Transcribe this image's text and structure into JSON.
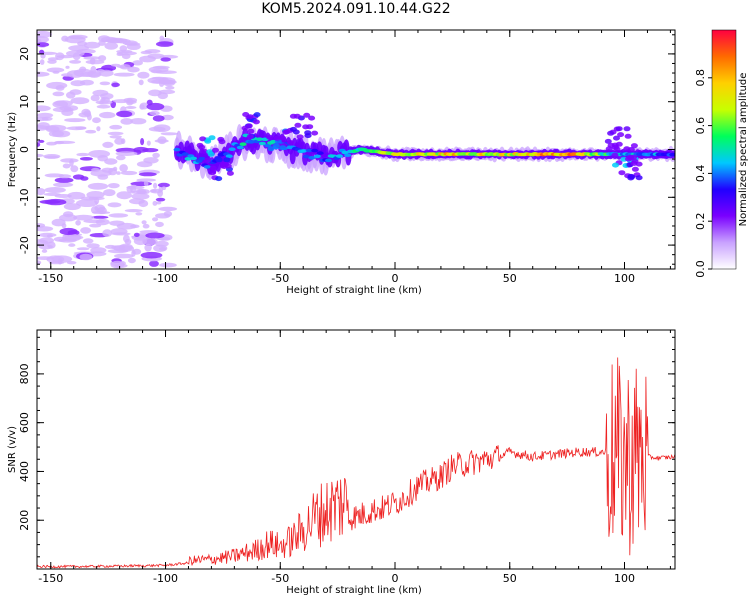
{
  "title": "KOM5.2024.091.10.44.G22",
  "chart_data": [
    {
      "type": "heatmap",
      "xlabel": "Height of straight line (km)",
      "ylabel": "Frequency (Hz)",
      "xlim": [
        -156,
        122
      ],
      "ylim": [
        -25,
        25
      ],
      "xticks": [
        -150,
        -100,
        -50,
        0,
        50,
        100
      ],
      "yticks": [
        -20,
        -10,
        0,
        10,
        20
      ],
      "colorbar": {
        "label": "Normalized spectral amplitude",
        "range": [
          0.0,
          1.0
        ],
        "ticks": [
          "0.0",
          "0.2",
          "0.4",
          "0.6",
          "0.8"
        ],
        "colormap": [
          "#ffffff",
          "#c9a2ff",
          "#7a00ff",
          "#2000ff",
          "#00c8ff",
          "#00ff5a",
          "#c8ff00",
          "#ffd000",
          "#ff6a00",
          "#ff0040"
        ]
      },
      "features": {
        "noise_region_x": [
          -156,
          -98
        ],
        "main_trace": [
          {
            "x": -95,
            "freq": 0.0,
            "amp": 0.45
          },
          {
            "x": -80,
            "freq": -3.0,
            "amp": 0.4
          },
          {
            "x": -65,
            "freq": 2.0,
            "amp": 0.5
          },
          {
            "x": -45,
            "freq": 0.0,
            "amp": 0.45
          },
          {
            "x": -30,
            "freq": -1.5,
            "amp": 0.4
          },
          {
            "x": -15,
            "freq": 0.0,
            "amp": 0.55
          },
          {
            "x": 0,
            "freq": -1.0,
            "amp": 0.7
          },
          {
            "x": 25,
            "freq": -1.0,
            "amp": 0.8
          },
          {
            "x": 50,
            "freq": -1.0,
            "amp": 0.75
          },
          {
            "x": 75,
            "freq": -1.0,
            "amp": 0.9
          },
          {
            "x": 95,
            "freq": -1.0,
            "amp": 0.5
          },
          {
            "x": 122,
            "freq": -1.0,
            "amp": 0.4
          }
        ]
      }
    },
    {
      "type": "line",
      "xlabel": "Height of straight line (km)",
      "ylabel": "SNR (v/v)",
      "xlim": [
        -156,
        122
      ],
      "ylim": [
        0,
        980
      ],
      "xticks": [
        -150,
        -100,
        -50,
        0,
        50,
        100
      ],
      "yticks": [
        200,
        400,
        600,
        800
      ],
      "color": "#ee2222",
      "series": [
        {
          "x": [
            -156,
            -140,
            -120,
            -100,
            -90,
            -80,
            -70,
            -60,
            -55,
            -50,
            -45,
            -40,
            -35,
            -30,
            -25,
            -20,
            -15,
            -10,
            -5,
            0,
            5,
            10,
            15,
            20,
            25,
            30,
            35,
            40,
            45,
            48,
            50,
            55,
            60,
            70,
            80,
            90,
            93,
            95,
            97,
            100,
            103,
            105,
            108,
            110,
            115,
            122
          ],
          "y": [
            10,
            10,
            12,
            15,
            25,
            30,
            40,
            60,
            80,
            70,
            90,
            120,
            160,
            180,
            200,
            210,
            220,
            240,
            250,
            270,
            300,
            340,
            360,
            380,
            420,
            430,
            440,
            450,
            460,
            470,
            480,
            470,
            460,
            470,
            480,
            480,
            480,
            470,
            460,
            450,
            460,
            460,
            470,
            460,
            455,
            460
          ]
        }
      ]
    }
  ]
}
